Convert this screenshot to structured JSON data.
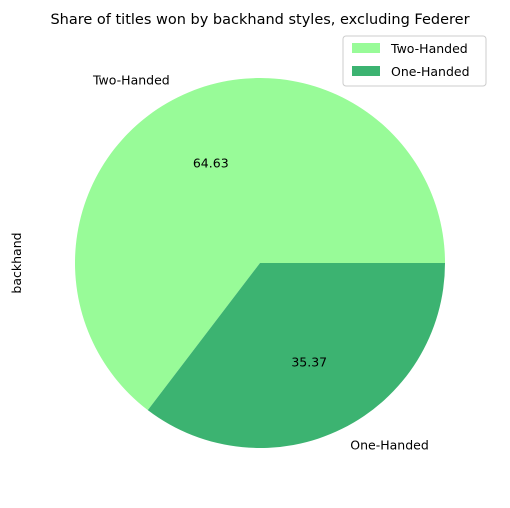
{
  "chart_data": {
    "type": "pie",
    "title": "Share of titles won by backhand styles, excluding Federer",
    "ylabel": "backhand",
    "categories": [
      "Two-Handed",
      "One-Handed"
    ],
    "values": [
      64.63,
      35.37
    ],
    "value_labels": [
      "64.63",
      "35.37"
    ],
    "colors": [
      "#98fb98",
      "#3cb371"
    ],
    "start_angle_deg": 0,
    "direction": "counterclockwise",
    "legend": {
      "position": "top-right",
      "entries": [
        "Two-Handed",
        "One-Handed"
      ]
    }
  }
}
